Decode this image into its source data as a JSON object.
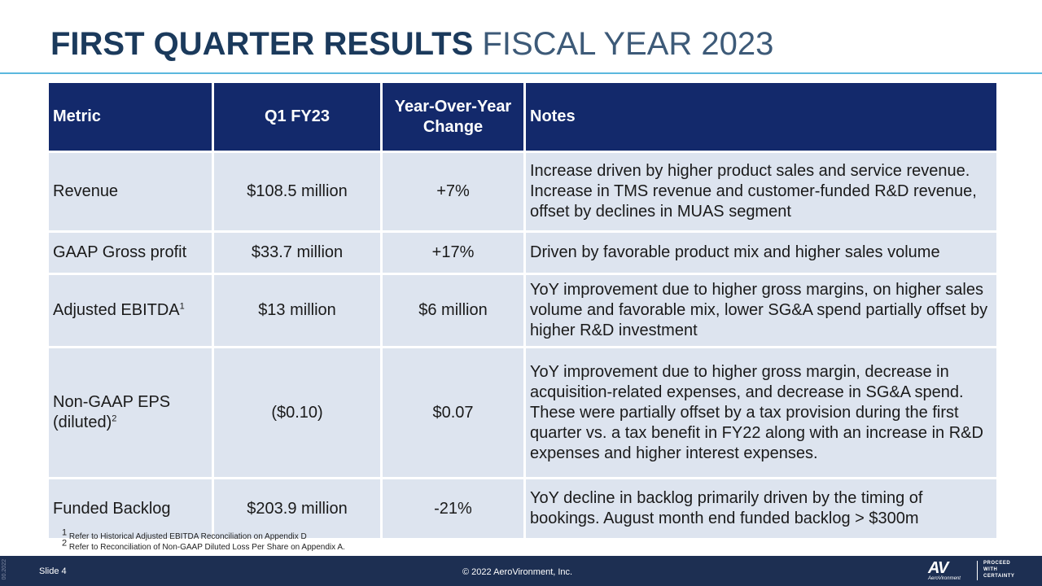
{
  "title": {
    "bold": "FIRST QUARTER RESULTS",
    "light": "FISCAL YEAR 2023"
  },
  "table": {
    "headers": [
      "Metric",
      "Q1 FY23",
      "Year-Over-Year Change",
      "Notes"
    ],
    "rows": [
      {
        "metric": "Revenue",
        "sup": "",
        "q1": "$108.5 million",
        "yoy": "+7%",
        "notes": "Increase driven by higher product sales and service revenue. Increase in TMS revenue and customer-funded R&D revenue, offset by declines in MUAS segment"
      },
      {
        "metric": "GAAP Gross profit",
        "sup": "",
        "q1": "$33.7 million",
        "yoy": "+17%",
        "notes": "Driven by favorable product mix and higher sales volume"
      },
      {
        "metric": "Adjusted EBITDA",
        "sup": "1",
        "q1": "$13 million",
        "yoy": "$6 million",
        "notes": "YoY improvement due to higher gross margins, on higher sales volume and favorable mix, lower SG&A spend partially offset by higher R&D investment"
      },
      {
        "metric": "Non-GAAP EPS (diluted)",
        "sup": "2",
        "q1": "($0.10)",
        "yoy": "$0.07",
        "notes": "YoY improvement due to higher gross margin, decrease in acquisition-related expenses, and decrease in SG&A spend. These were partially offset by a tax provision during the first quarter vs. a tax benefit in FY22 along with an increase in R&D expenses and higher interest expenses."
      },
      {
        "metric": "Funded Backlog",
        "sup": "",
        "q1": "$203.9 million",
        "yoy": "-21%",
        "notes": "YoY decline in backlog primarily driven by the timing of bookings. August month end funded backlog > $300m"
      }
    ]
  },
  "footnotes": [
    {
      "num": "1",
      "text": "Refer to Historical Adjusted EBITDA Reconciliation on Appendix D"
    },
    {
      "num": "2",
      "text": "Refer to Reconciliation of Non-GAAP Diluted Loss Per Share on Appendix A."
    }
  ],
  "footer": {
    "side_code": "00.2022",
    "slide": "Slide 4",
    "copyright": "© 2022 AeroVironment, Inc.",
    "logo_mark": "AV",
    "logo_name": "AeroVironment",
    "tagline": [
      "PROCEED",
      "WITH",
      "CERTAINTY"
    ]
  },
  "colors": {
    "title": "#1b3a5c",
    "header_bg": "#13296b",
    "row_bg": "#dde4ef",
    "rule": "#5bb8de",
    "footer_bg": "#1d2f52"
  }
}
